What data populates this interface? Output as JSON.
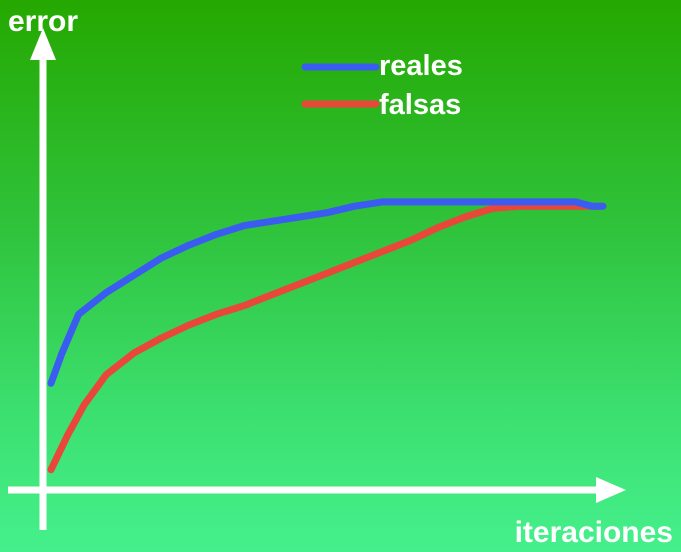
{
  "chart_data": {
    "type": "line",
    "title": "",
    "ylabel": "error",
    "xlabel": "iteraciones",
    "grid": false,
    "legend_position": "top-center",
    "colors": {
      "background_top": "#25a800",
      "background_bottom": "#45f08c",
      "axes": "#ffffff",
      "reales": "#3a5cf0",
      "falsas": "#e8473a"
    },
    "xlim": [
      0,
      100
    ],
    "ylim": [
      0,
      100
    ],
    "series": [
      {
        "name": "reales",
        "color": "#3a5cf0",
        "x": [
          0,
          2,
          5,
          10,
          15,
          20,
          25,
          30,
          35,
          40,
          45,
          50,
          55,
          60,
          65,
          70,
          75,
          80,
          85,
          90,
          95,
          98,
          100
        ],
        "y": [
          24,
          31,
          40,
          45,
          49,
          53,
          56,
          58.5,
          60.5,
          61.5,
          62.5,
          63.5,
          65,
          66,
          66,
          66,
          66,
          66,
          66,
          66,
          66,
          65,
          65
        ]
      },
      {
        "name": "falsas",
        "color": "#e8473a",
        "x": [
          0,
          3,
          6,
          10,
          15,
          20,
          25,
          30,
          35,
          40,
          45,
          50,
          55,
          60,
          65,
          70,
          75,
          80,
          85,
          90,
          95,
          100
        ],
        "y": [
          4,
          12,
          19,
          26,
          31,
          34.5,
          37.5,
          40,
          42,
          44.5,
          47,
          49.5,
          52,
          54.5,
          57,
          60,
          62.5,
          64.5,
          65,
          65,
          65,
          65
        ]
      }
    ]
  }
}
